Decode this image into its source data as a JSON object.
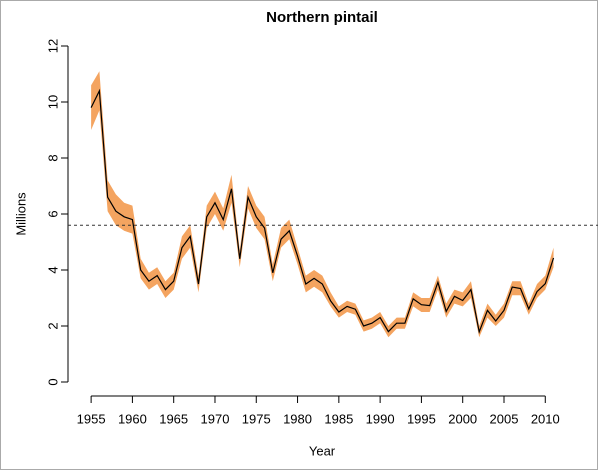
{
  "chart_data": {
    "type": "line",
    "title": "Northern pintail",
    "x_label": "Year",
    "y_label": "Millions",
    "x": [
      1955,
      1956,
      1957,
      1958,
      1959,
      1960,
      1961,
      1962,
      1963,
      1964,
      1965,
      1966,
      1967,
      1968,
      1969,
      1970,
      1971,
      1972,
      1973,
      1974,
      1975,
      1976,
      1977,
      1978,
      1979,
      1980,
      1981,
      1982,
      1983,
      1984,
      1985,
      1986,
      1987,
      1988,
      1989,
      1990,
      1991,
      1992,
      1993,
      1994,
      1995,
      1996,
      1997,
      1998,
      1999,
      2000,
      2001,
      2002,
      2003,
      2004,
      2005,
      2006,
      2007,
      2008,
      2009,
      2010,
      2011
    ],
    "values": [
      9.8,
      10.4,
      6.6,
      6.1,
      5.9,
      5.8,
      4.0,
      3.6,
      3.8,
      3.3,
      3.6,
      4.8,
      5.2,
      3.5,
      5.9,
      6.4,
      5.8,
      6.9,
      4.4,
      6.6,
      5.9,
      5.5,
      3.9,
      5.1,
      5.4,
      4.5,
      3.5,
      3.7,
      3.5,
      2.9,
      2.5,
      2.7,
      2.6,
      2.0,
      2.1,
      2.3,
      1.8,
      2.1,
      2.1,
      2.97,
      2.76,
      2.73,
      3.56,
      2.52,
      3.06,
      2.91,
      3.3,
      1.79,
      2.56,
      2.18,
      2.56,
      3.39,
      3.34,
      2.61,
      3.23,
      3.51,
      4.43
    ],
    "band_lower": [
      9.0,
      9.7,
      6.1,
      5.6,
      5.4,
      5.3,
      3.7,
      3.3,
      3.5,
      3.0,
      3.3,
      4.4,
      4.8,
      3.2,
      5.5,
      6.0,
      5.4,
      6.4,
      4.1,
      6.2,
      5.5,
      5.1,
      3.6,
      4.8,
      5.1,
      4.2,
      3.2,
      3.4,
      3.2,
      2.7,
      2.3,
      2.5,
      2.4,
      1.8,
      1.9,
      2.1,
      1.6,
      1.9,
      1.9,
      2.7,
      2.5,
      2.5,
      3.3,
      2.3,
      2.8,
      2.7,
      3.0,
      1.6,
      2.3,
      2.0,
      2.3,
      3.1,
      3.1,
      2.4,
      3.0,
      3.3,
      4.1
    ],
    "band_upper": [
      10.6,
      11.1,
      7.2,
      6.7,
      6.4,
      6.3,
      4.4,
      3.9,
      4.1,
      3.6,
      3.9,
      5.2,
      5.6,
      3.8,
      6.3,
      6.8,
      6.2,
      7.4,
      4.7,
      7.0,
      6.3,
      5.9,
      4.2,
      5.5,
      5.8,
      4.8,
      3.8,
      4.0,
      3.8,
      3.2,
      2.7,
      2.9,
      2.8,
      2.2,
      2.3,
      2.5,
      2.0,
      2.3,
      2.3,
      3.2,
      3.0,
      3.0,
      3.8,
      2.8,
      3.3,
      3.2,
      3.6,
      2.0,
      2.8,
      2.4,
      2.8,
      3.6,
      3.6,
      2.8,
      3.5,
      3.8,
      4.8
    ],
    "color": "#000000",
    "band_color": "#f4a460",
    "reference_line": 5.6,
    "xlim": [
      1952.2,
      2013.6
    ],
    "ylim": [
      -0.5,
      12.5
    ],
    "xticks": [
      1955,
      1960,
      1965,
      1970,
      1975,
      1980,
      1985,
      1990,
      1995,
      2000,
      2005,
      2010
    ],
    "yticks": [
      0,
      2,
      4,
      6,
      8,
      10,
      12
    ]
  }
}
